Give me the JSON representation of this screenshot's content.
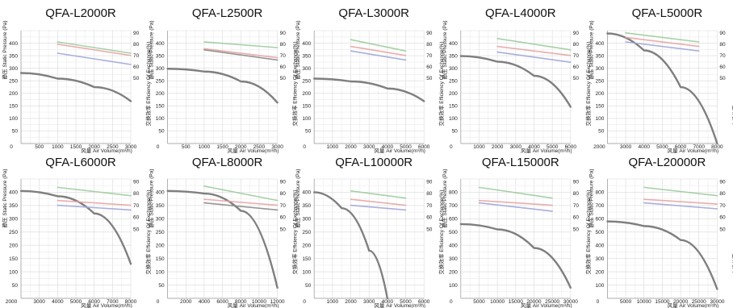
{
  "chart_data": [
    {
      "type": "line",
      "title": "QFA-L2000R",
      "xlabel": "风量  Air Volume(m³/h)",
      "ylabel": "静压 Static Pressure (Pa)",
      "y2label": "交换效率  Efficiency Of Exchange(%)",
      "xlim": [
        0,
        3000
      ],
      "ylim": [
        0,
        400
      ],
      "y2lim": [
        50,
        90
      ],
      "xticks": [
        "500",
        "1000",
        "1500",
        "2000",
        "2500",
        "3000"
      ],
      "yticks": [
        "50",
        "100",
        "150",
        "200",
        "250",
        "300",
        "350",
        "400"
      ],
      "y2ticks": [
        "50",
        "60",
        "70",
        "80",
        "90"
      ],
      "y0label": "0",
      "grid": true,
      "series": [
        {
          "kind": "pressure",
          "color": "#7f7f7f",
          "x": [
            0,
            1000,
            2000,
            3000
          ],
          "y": [
            250,
            230,
            200,
            150
          ]
        },
        {
          "kind": "efficiency",
          "color": "#9ccc9c",
          "x": [
            1000,
            3000
          ],
          "y": [
            82,
            72
          ]
        },
        {
          "kind": "efficiency",
          "color": "#e8a4a4",
          "x": [
            1000,
            3000
          ],
          "y": [
            80,
            70
          ]
        },
        {
          "kind": "efficiency",
          "color": "#9ea6d8",
          "x": [
            1000,
            3000
          ],
          "y": [
            72,
            62
          ]
        }
      ]
    },
    {
      "type": "line",
      "title": "QFA-L2500R",
      "xlabel": "风量  Air Volume(m³/h)",
      "ylabel": "静压 Static Pressure (Pa)",
      "y2label": "交换效率  Efficiency Of Exchange(%)",
      "xlim": [
        0,
        3000
      ],
      "ylim": [
        0,
        400
      ],
      "y2lim": [
        50,
        90
      ],
      "xticks": [
        "500",
        "1000",
        "1500",
        "2000",
        "2500",
        "3000"
      ],
      "yticks": [
        "50",
        "100",
        "150",
        "200",
        "250",
        "300",
        "350",
        "400"
      ],
      "y2ticks": [
        "50",
        "60",
        "70",
        "80",
        "90"
      ],
      "y0label": "0",
      "grid": true,
      "series": [
        {
          "kind": "pressure",
          "color": "#7f7f7f",
          "x": [
            0,
            1000,
            2000,
            3000
          ],
          "y": [
            265,
            255,
            220,
            145
          ]
        },
        {
          "kind": "efficiency",
          "color": "#9ccc9c",
          "x": [
            1000,
            3000
          ],
          "y": [
            82,
            77
          ]
        },
        {
          "kind": "efficiency",
          "color": "#e8a4a4",
          "x": [
            1000,
            3000
          ],
          "y": [
            76,
            68
          ]
        },
        {
          "kind": "efficiency",
          "color": "#8a8a8a",
          "x": [
            1000,
            3000
          ],
          "y": [
            75,
            66
          ]
        }
      ]
    },
    {
      "type": "line",
      "title": "QFA-L3000R",
      "xlabel": "风量  Air Volume(m³/h)",
      "ylabel": "静压 Static Pressure (Pa)",
      "y2label": "交换效率  Efficiency Of Exchange(%)",
      "xlim": [
        0,
        6000
      ],
      "ylim": [
        0,
        400
      ],
      "y2lim": [
        50,
        90
      ],
      "xticks": [
        "1000",
        "2000",
        "3000",
        "4000",
        "5000",
        "6000"
      ],
      "yticks": [
        "50",
        "100",
        "150",
        "200",
        "250",
        "300",
        "350",
        "400"
      ],
      "y2ticks": [
        "50",
        "60",
        "70",
        "80",
        "90"
      ],
      "y0label": "0",
      "grid": true,
      "series": [
        {
          "kind": "pressure",
          "color": "#7f7f7f",
          "x": [
            0,
            2000,
            4000,
            6000
          ],
          "y": [
            230,
            220,
            195,
            150
          ]
        },
        {
          "kind": "efficiency",
          "color": "#9ccc9c",
          "x": [
            2000,
            5000
          ],
          "y": [
            84,
            74
          ]
        },
        {
          "kind": "efficiency",
          "color": "#e8a4a4",
          "x": [
            2000,
            5000
          ],
          "y": [
            78,
            70
          ]
        },
        {
          "kind": "efficiency",
          "color": "#9ea6d8",
          "x": [
            2000,
            5000
          ],
          "y": [
            74,
            66
          ]
        }
      ]
    },
    {
      "type": "line",
      "title": "QFA-L4000R",
      "xlabel": "风量  Air Volume(m³/h)",
      "ylabel": "静压 Static Pressure (Pa)",
      "y2label": "交换效率  Efficiency Of Exchange(%)",
      "xlim": [
        0,
        6000
      ],
      "ylim": [
        0,
        400
      ],
      "y2lim": [
        50,
        90
      ],
      "xticks": [
        "1000",
        "2000",
        "3000",
        "4000",
        "5000",
        "6000"
      ],
      "yticks": [
        "50",
        "100",
        "150",
        "200",
        "250",
        "300",
        "350",
        "400"
      ],
      "y2ticks": [
        "50",
        "60",
        "70",
        "80",
        "90"
      ],
      "y0label": "0",
      "grid": true,
      "series": [
        {
          "kind": "pressure",
          "color": "#7f7f7f",
          "x": [
            0,
            2000,
            4000,
            6000
          ],
          "y": [
            310,
            290,
            240,
            130
          ]
        },
        {
          "kind": "efficiency",
          "color": "#9ccc9c",
          "x": [
            2000,
            6000
          ],
          "y": [
            85,
            75
          ]
        },
        {
          "kind": "efficiency",
          "color": "#e8a4a4",
          "x": [
            2000,
            6000
          ],
          "y": [
            78,
            70
          ]
        },
        {
          "kind": "efficiency",
          "color": "#9ea6d8",
          "x": [
            2000,
            6000
          ],
          "y": [
            73,
            64
          ]
        }
      ]
    },
    {
      "type": "line",
      "title": "QFA-L5000R",
      "xlabel": "风量  Air Volume(m³/h)",
      "ylabel": "静压 Static Pressure (Pa)",
      "y2label": "交换效率  Efficiency Of Exchange(%)",
      "xlim": [
        2000,
        8000
      ],
      "ylim": [
        0,
        400
      ],
      "y2lim": [
        50,
        90
      ],
      "xticks": [
        "3000",
        "4000",
        "5000",
        "6000",
        "7000",
        "8000"
      ],
      "yticks": [
        "50",
        "100",
        "150",
        "200",
        "250",
        "300",
        "350",
        "400"
      ],
      "y2ticks": [
        "50",
        "60",
        "70",
        "80",
        "90"
      ],
      "y0label": "2000",
      "grid": true,
      "series": [
        {
          "kind": "pressure",
          "color": "#7f7f7f",
          "x": [
            2000,
            4000,
            6000,
            8000
          ],
          "y": [
            390,
            330,
            200,
            0
          ]
        },
        {
          "kind": "efficiency",
          "color": "#9ccc9c",
          "x": [
            3000,
            7000
          ],
          "y": [
            90,
            82
          ]
        },
        {
          "kind": "efficiency",
          "color": "#e8a4a4",
          "x": [
            3000,
            7000
          ],
          "y": [
            86,
            78
          ]
        },
        {
          "kind": "efficiency",
          "color": "#9ea6d8",
          "x": [
            3000,
            7000
          ],
          "y": [
            82,
            74
          ]
        }
      ]
    },
    {
      "type": "line",
      "title": "QFA-L6000R",
      "xlabel": "风量  Air Volume(m³/h)",
      "ylabel": "静压 Static Pressure (Pa)",
      "y2label": "交换效率  Efficiency Of Exchange(%)",
      "xlim": [
        2000,
        8000
      ],
      "ylim": [
        0,
        450
      ],
      "y2lim": [
        50,
        90
      ],
      "xticks": [
        "3000",
        "4000",
        "5000",
        "6000",
        "7000",
        "8000"
      ],
      "yticks": [
        "50",
        "100",
        "150",
        "200",
        "250",
        "300",
        "350",
        "400"
      ],
      "y2ticks": [
        "50",
        "60",
        "70",
        "80",
        "90"
      ],
      "y0label": "2000",
      "grid": true,
      "series": [
        {
          "kind": "pressure",
          "color": "#7f7f7f",
          "x": [
            2000,
            4000,
            6000,
            8000
          ],
          "y": [
            405,
            385,
            320,
            130
          ]
        },
        {
          "kind": "efficiency",
          "color": "#9ccc9c",
          "x": [
            4000,
            8000
          ],
          "y": [
            85,
            78
          ]
        },
        {
          "kind": "efficiency",
          "color": "#e8a4a4",
          "x": [
            4000,
            8000
          ],
          "y": [
            74,
            70
          ]
        },
        {
          "kind": "efficiency",
          "color": "#9ea6d8",
          "x": [
            4000,
            8000
          ],
          "y": [
            70,
            66
          ]
        }
      ]
    },
    {
      "type": "line",
      "title": "QFA-L8000R",
      "xlabel": "风量  Air Volume(m³/h)",
      "ylabel": "静压 Static Pressure (Pa)",
      "y2label": "交换效率  Efficiency Of Exchange(%)",
      "xlim": [
        0,
        12000
      ],
      "ylim": [
        0,
        450
      ],
      "y2lim": [
        50,
        90
      ],
      "xticks": [
        "2000",
        "4000",
        "6000",
        "8000",
        "10000",
        "12000"
      ],
      "yticks": [
        "50",
        "100",
        "150",
        "200",
        "250",
        "300",
        "350",
        "400"
      ],
      "y2ticks": [
        "50",
        "60",
        "70",
        "80",
        "90"
      ],
      "y0label": "0",
      "grid": true,
      "series": [
        {
          "kind": "pressure",
          "color": "#7f7f7f",
          "x": [
            0,
            4000,
            8000,
            12000
          ],
          "y": [
            405,
            395,
            330,
            40
          ]
        },
        {
          "kind": "efficiency",
          "color": "#9ccc9c",
          "x": [
            4000,
            12000
          ],
          "y": [
            86,
            74
          ]
        },
        {
          "kind": "efficiency",
          "color": "#e8a4a4",
          "x": [
            4000,
            12000
          ],
          "y": [
            75,
            70
          ]
        },
        {
          "kind": "efficiency",
          "color": "#8a8a8a",
          "x": [
            4000,
            12000
          ],
          "y": [
            72,
            66
          ]
        }
      ]
    },
    {
      "type": "line",
      "title": "QFA-L10000R",
      "xlabel": "风量  Air Volume(m³/h)",
      "ylabel": "静压 Static Pressure (Pa)",
      "y2label": "交换效率  Efficiency Of Exchange(%)",
      "xlim": [
        0,
        6000
      ],
      "ylim": [
        0,
        450
      ],
      "y2lim": [
        50,
        90
      ],
      "xticks": [
        "1000",
        "2000",
        "3000",
        "4000",
        "5000",
        "6000"
      ],
      "yticks": [
        "50",
        "100",
        "150",
        "200",
        "250",
        "300",
        "350",
        "400"
      ],
      "y2ticks": [
        "50",
        "60",
        "70",
        "80",
        "90"
      ],
      "y0label": "0",
      "grid": true,
      "series": [
        {
          "kind": "pressure",
          "color": "#7f7f7f",
          "x": [
            0,
            1500,
            3000,
            4000
          ],
          "y": [
            400,
            340,
            180,
            0
          ]
        },
        {
          "kind": "efficiency",
          "color": "#9ccc9c",
          "x": [
            2000,
            5000
          ],
          "y": [
            82,
            76
          ]
        },
        {
          "kind": "efficiency",
          "color": "#e8a4a4",
          "x": [
            2000,
            5000
          ],
          "y": [
            75,
            70
          ]
        },
        {
          "kind": "efficiency",
          "color": "#9ea6d8",
          "x": [
            2000,
            5000
          ],
          "y": [
            70,
            66
          ]
        }
      ]
    },
    {
      "type": "line",
      "title": "QFA-L15000R",
      "xlabel": "风量  Air Volume(m³/h)",
      "ylabel": "静压 Static Pressure (Pa)",
      "y2label": "交换效率  Efficiency Of Exchange(%)",
      "xlim": [
        0,
        30000
      ],
      "ylim": [
        0,
        900
      ],
      "y2lim": [
        50,
        90
      ],
      "xticks": [
        "5000",
        "10000",
        "15000",
        "20000",
        "25000",
        "30000"
      ],
      "yticks": [
        "100",
        "200",
        "300",
        "400",
        "500",
        "600",
        "700",
        "800"
      ],
      "y2ticks": [
        "50",
        "60",
        "70",
        "80",
        "90"
      ],
      "y0label": "0",
      "grid": true,
      "series": [
        {
          "kind": "pressure",
          "color": "#7f7f7f",
          "x": [
            0,
            10000,
            20000,
            30000
          ],
          "y": [
            560,
            520,
            380,
            80
          ]
        },
        {
          "kind": "efficiency",
          "color": "#9ccc9c",
          "x": [
            5000,
            25000
          ],
          "y": [
            85,
            76
          ]
        },
        {
          "kind": "efficiency",
          "color": "#e8a4a4",
          "x": [
            5000,
            25000
          ],
          "y": [
            74,
            70
          ]
        },
        {
          "kind": "efficiency",
          "color": "#9ea6d8",
          "x": [
            5000,
            25000
          ],
          "y": [
            72,
            65
          ]
        }
      ]
    },
    {
      "type": "line",
      "title": "QFA-L20000R",
      "xlabel": "风量  Air Volume(m³/h)",
      "ylabel": "静压 Static Pressure (Pa)",
      "y2label": "交换效率  Efficiency Of Exchange(%)",
      "xlim": [
        0,
        30000
      ],
      "ylim": [
        0,
        900
      ],
      "y2lim": [
        50,
        90
      ],
      "xticks": [
        "5000",
        "10000",
        "15000",
        "20000",
        "25000",
        "30000"
      ],
      "yticks": [
        "100",
        "200",
        "300",
        "400",
        "500",
        "600",
        "700",
        "800"
      ],
      "y2ticks": [
        "50",
        "60",
        "70",
        "80",
        "90"
      ],
      "y0label": "0",
      "grid": true,
      "series": [
        {
          "kind": "pressure",
          "color": "#7f7f7f",
          "x": [
            0,
            10000,
            20000,
            30000
          ],
          "y": [
            580,
            545,
            440,
            70
          ]
        },
        {
          "kind": "efficiency",
          "color": "#9ccc9c",
          "x": [
            10000,
            30000
          ],
          "y": [
            85,
            78
          ]
        },
        {
          "kind": "efficiency",
          "color": "#e8a4a4",
          "x": [
            10000,
            30000
          ],
          "y": [
            75,
            71
          ]
        },
        {
          "kind": "efficiency",
          "color": "#9ea6d8",
          "x": [
            10000,
            30000
          ],
          "y": [
            72,
            67
          ]
        }
      ]
    }
  ]
}
